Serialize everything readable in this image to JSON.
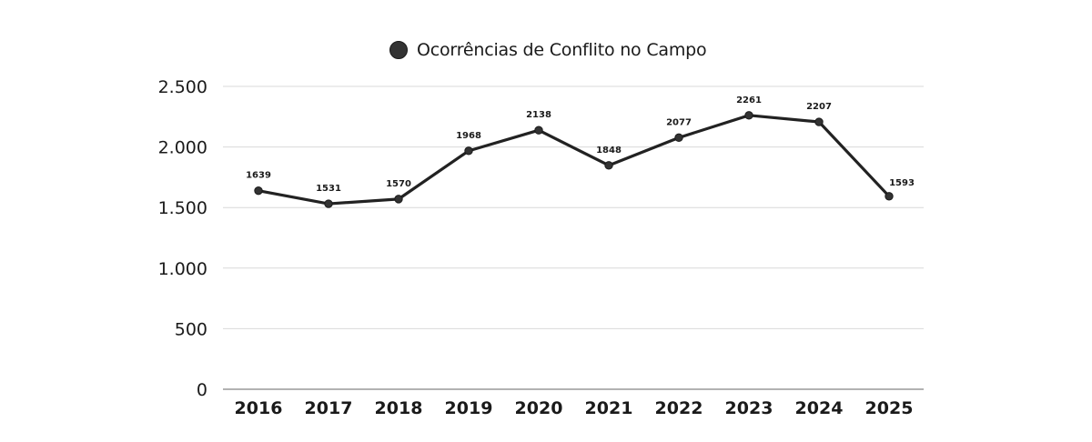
{
  "chart_data": {
    "type": "line",
    "title": "",
    "xlabel": "",
    "ylabel": "",
    "categories": [
      "2016",
      "2017",
      "2018",
      "2019",
      "2020",
      "2021",
      "2022",
      "2023",
      "2024",
      "2025"
    ],
    "series": [
      {
        "name": "Ocorrências de Conflito no Campo",
        "values": [
          1639,
          1531,
          1570,
          1968,
          2138,
          1848,
          2077,
          2261,
          2207,
          1593
        ],
        "color": "#222222",
        "marker_color": "#333333"
      }
    ],
    "data_labels": [
      "1639",
      "1531",
      "1570",
      "1968",
      "2138",
      "1848",
      "2077",
      "2261",
      "2207",
      "1593"
    ],
    "ylim": [
      0,
      2500
    ],
    "yticks": [
      0,
      500,
      1000,
      1500,
      2000,
      2500
    ],
    "ytick_labels": [
      "0",
      "500",
      "1.000",
      "1.500",
      "2.000",
      "2.500"
    ],
    "grid": true,
    "grid_color": "#d9d9d9",
    "legend_position": "top-center"
  },
  "legend": {
    "label": "Ocorrências de Conflito no Campo"
  }
}
